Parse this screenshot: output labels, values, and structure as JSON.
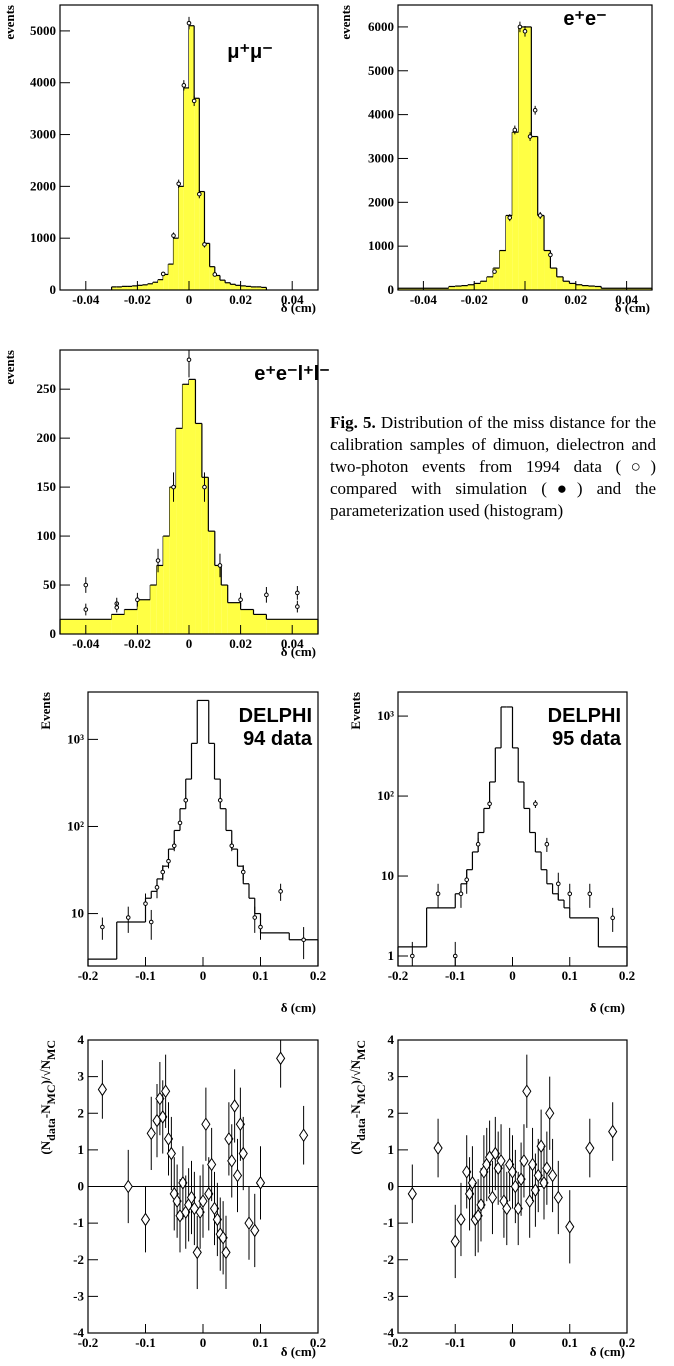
{
  "chart_data": [
    {
      "type": "histogram",
      "annotation": [
        "μ⁺μ⁻"
      ],
      "ylabel": [
        "events"
      ],
      "xlabel": "δ (cm)",
      "bins": [
        -0.03,
        -0.028,
        -0.026,
        -0.024,
        -0.022,
        -0.02,
        -0.018,
        -0.016,
        -0.014,
        -0.012,
        -0.01,
        -0.008,
        -0.006,
        -0.004,
        -0.002,
        0,
        0.002,
        0.004,
        0.006,
        0.008,
        0.01,
        0.012,
        0.014,
        0.016,
        0.018,
        0.02,
        0.022,
        0.024,
        0.026,
        0.028,
        0.03
      ],
      "values": [
        60,
        60,
        70,
        70,
        80,
        90,
        100,
        120,
        150,
        200,
        300,
        500,
        1000,
        2000,
        3900,
        5100,
        3700,
        1900,
        900,
        450,
        280,
        190,
        140,
        110,
        90,
        80,
        70,
        60,
        60,
        50
      ],
      "fill": "#ffff44",
      "points": {
        "x": [
          -0.01,
          -0.006,
          -0.004,
          -0.002,
          0,
          0.002,
          0.004,
          0.006,
          0.01
        ],
        "values": [
          310,
          1050,
          2050,
          3950,
          5150,
          3650,
          1850,
          880,
          300
        ],
        "errors": [
          40,
          60,
          80,
          100,
          120,
          100,
          80,
          60,
          40
        ]
      },
      "xlim": [
        -0.05,
        0.05
      ],
      "ylim": [
        0,
        5500
      ],
      "xticks": [
        -0.04,
        -0.02,
        0,
        0.02,
        0.04
      ],
      "yticks": [
        0,
        1000,
        2000,
        3000,
        4000,
        5000
      ]
    },
    {
      "type": "histogram",
      "annotation": [
        "e⁺e⁻"
      ],
      "ylabel": [
        "events"
      ],
      "xlabel": "δ (cm)",
      "bins": [
        -0.05,
        -0.03,
        -0.0275,
        -0.025,
        -0.0225,
        -0.02,
        -0.0175,
        -0.015,
        -0.0125,
        -0.01,
        -0.0075,
        -0.005,
        -0.0025,
        0,
        0.0025,
        0.005,
        0.0075,
        0.01,
        0.0125,
        0.015,
        0.0175,
        0.02,
        0.0225,
        0.025,
        0.0275,
        0.03,
        0.05
      ],
      "values": [
        40,
        80,
        90,
        100,
        120,
        150,
        200,
        300,
        500,
        900,
        1700,
        3600,
        6000,
        6000,
        3500,
        1700,
        900,
        500,
        300,
        200,
        150,
        120,
        100,
        90,
        80,
        40
      ],
      "fill": "#ffff44",
      "points": {
        "x": [
          -0.012,
          -0.006,
          -0.004,
          -0.002,
          0,
          0.002,
          0.004,
          0.006,
          0.01
        ],
        "values": [
          420,
          1650,
          3650,
          6000,
          5900,
          3500,
          4100,
          1700,
          800
        ],
        "errors": [
          40,
          80,
          100,
          120,
          120,
          100,
          100,
          80,
          60
        ]
      },
      "xlim": [
        -0.05,
        0.05
      ],
      "ylim": [
        0,
        6500
      ],
      "xticks": [
        -0.04,
        -0.02,
        0,
        0.02,
        0.04
      ],
      "yticks": [
        0,
        1000,
        2000,
        3000,
        4000,
        5000,
        6000
      ]
    },
    {
      "type": "histogram",
      "annotation": [
        "e⁺e⁻l⁺l⁻"
      ],
      "ylabel": [
        "events"
      ],
      "xlabel": "δ (cm)",
      "bins": [
        -0.05,
        -0.03,
        -0.025,
        -0.02,
        -0.015,
        -0.0125,
        -0.01,
        -0.0075,
        -0.005,
        -0.0025,
        0,
        0.0025,
        0.005,
        0.0075,
        0.01,
        0.0125,
        0.015,
        0.02,
        0.025,
        0.03,
        0.05
      ],
      "values": [
        15,
        20,
        25,
        35,
        50,
        70,
        100,
        150,
        210,
        255,
        260,
        215,
        160,
        105,
        70,
        50,
        32,
        25,
        20,
        15
      ],
      "fill": "#ffff44",
      "points": {
        "x": [
          -0.04,
          -0.04,
          -0.028,
          -0.028,
          -0.02,
          -0.012,
          -0.006,
          0,
          0.006,
          0.012,
          0.02,
          0.03,
          0.042,
          0.042
        ],
        "values": [
          50,
          25,
          31,
          27,
          35,
          75,
          150,
          280,
          150,
          70,
          35,
          40,
          42,
          28
        ],
        "errors": [
          8,
          6,
          6,
          5,
          7,
          12,
          15,
          18,
          15,
          12,
          7,
          8,
          7,
          6
        ]
      },
      "xlim": [
        -0.05,
        0.05
      ],
      "ylim": [
        0,
        290
      ],
      "xticks": [
        -0.04,
        -0.02,
        0,
        0.02,
        0.04
      ],
      "yticks": [
        0,
        50,
        100,
        150,
        200,
        250
      ]
    },
    {
      "type": "histogram",
      "log_scale": true,
      "annotation": [
        "DELPHI",
        "94 data"
      ],
      "ylabel": [
        "Events"
      ],
      "xlabel": "δ (cm)",
      "bins": [
        -0.2,
        -0.15,
        -0.1,
        -0.09,
        -0.08,
        -0.07,
        -0.06,
        -0.05,
        -0.04,
        -0.03,
        -0.02,
        -0.01,
        0,
        0.01,
        0.02,
        0.03,
        0.04,
        0.05,
        0.06,
        0.07,
        0.08,
        0.09,
        0.1,
        0.15,
        0.2
      ],
      "values": [
        3,
        8,
        15,
        18,
        25,
        35,
        55,
        90,
        160,
        350,
        900,
        2800,
        2800,
        900,
        350,
        160,
        90,
        55,
        35,
        22,
        15,
        10,
        6,
        5
      ],
      "points": {
        "x": [
          -0.175,
          -0.13,
          -0.1,
          -0.09,
          -0.08,
          -0.07,
          -0.06,
          -0.05,
          -0.04,
          -0.03,
          0.03,
          0.05,
          0.07,
          0.09,
          0.1,
          0.135,
          0.175
        ],
        "values": [
          7,
          9,
          13,
          8,
          20,
          30,
          40,
          60,
          110,
          200,
          200,
          60,
          30,
          9,
          7,
          18,
          5
        ],
        "errors": [
          2,
          3,
          4,
          3,
          5,
          6,
          7,
          8,
          11,
          15,
          15,
          8,
          6,
          3,
          2,
          4,
          2
        ]
      },
      "xlim": [
        -0.2,
        0.2
      ],
      "ylim": [
        2.5,
        3500
      ],
      "xticks": [
        -0.2,
        -0.1,
        0,
        0.1,
        0.2
      ],
      "yticks": [
        10,
        {
          "value": 100,
          "label": "10²"
        },
        {
          "value": 1000,
          "label": "10³"
        }
      ]
    },
    {
      "type": "histogram",
      "log_scale": true,
      "annotation": [
        "DELPHI",
        "95 data"
      ],
      "ylabel": [
        "Events"
      ],
      "xlabel": "δ (cm)",
      "bins": [
        -0.2,
        -0.15,
        -0.1,
        -0.09,
        -0.08,
        -0.07,
        -0.06,
        -0.05,
        -0.04,
        -0.03,
        -0.02,
        -0.01,
        0,
        0.01,
        0.02,
        0.03,
        0.04,
        0.05,
        0.06,
        0.07,
        0.08,
        0.09,
        0.1,
        0.15,
        0.2
      ],
      "values": [
        1.3,
        4,
        6,
        8,
        12,
        20,
        35,
        70,
        150,
        400,
        1300,
        1300,
        400,
        150,
        70,
        35,
        20,
        12,
        8,
        6,
        5,
        4,
        3,
        1.3
      ],
      "points": {
        "x": [
          -0.175,
          -0.13,
          -0.1,
          -0.09,
          -0.08,
          -0.06,
          -0.04,
          0.04,
          0.06,
          0.08,
          0.1,
          0.135,
          0.175
        ],
        "values": [
          1,
          6,
          1,
          6,
          9,
          25,
          80,
          80,
          25,
          8,
          6,
          6,
          3
        ],
        "errors": [
          0.5,
          2,
          0.5,
          2,
          3,
          5,
          9,
          9,
          5,
          3,
          2,
          2,
          1
        ]
      },
      "xlim": [
        -0.2,
        0.2
      ],
      "ylim": [
        0.75,
        2000
      ],
      "xticks": [
        -0.2,
        -0.1,
        0,
        0.1,
        0.2
      ],
      "yticks": [
        1,
        10,
        {
          "value": 100,
          "label": "10²"
        },
        {
          "value": 1000,
          "label": "10³"
        }
      ]
    },
    {
      "type": "scatter",
      "marker": "diamond",
      "ylabel": [
        "(N",
        "data",
        "-N",
        "MC",
        ")/√N",
        "MC"
      ],
      "xlabel": "δ (cm)",
      "reference_line": 0,
      "points": {
        "x": [
          -0.175,
          -0.13,
          -0.1,
          -0.09,
          -0.08,
          -0.075,
          -0.07,
          -0.065,
          -0.06,
          -0.055,
          -0.05,
          -0.045,
          -0.04,
          -0.035,
          -0.03,
          -0.025,
          -0.02,
          -0.015,
          -0.01,
          -0.005,
          0,
          0.005,
          0.01,
          0.015,
          0.02,
          0.025,
          0.03,
          0.035,
          0.04,
          0.045,
          0.05,
          0.055,
          0.06,
          0.065,
          0.07,
          0.08,
          0.09,
          0.1,
          0.135,
          0.175
        ],
        "values": [
          2.65,
          0,
          -0.9,
          1.45,
          1.8,
          2.4,
          1.9,
          2.6,
          1.3,
          0.9,
          -0.2,
          -0.4,
          -0.8,
          0.1,
          -0.7,
          -0.5,
          -0.3,
          -0.6,
          -1.8,
          -0.7,
          -0.4,
          1.7,
          -0.2,
          0.6,
          -0.6,
          -0.9,
          -1.3,
          -1.4,
          -1.8,
          1.3,
          0.7,
          2.2,
          0.3,
          1.7,
          0.9,
          -1,
          -1.2,
          0.1,
          3.5,
          1.4
        ],
        "errors": [
          0.8,
          1,
          0.9,
          1,
          1,
          1,
          1,
          1,
          1,
          1,
          1,
          1,
          1,
          1,
          1,
          1,
          1,
          1,
          1,
          1,
          1,
          1,
          1,
          1,
          1,
          1,
          1,
          1,
          1,
          1,
          1,
          1,
          1,
          1,
          1,
          1,
          1,
          1,
          0.8,
          0.8
        ]
      },
      "xlim": [
        -0.2,
        0.2
      ],
      "ylim": [
        -4,
        4
      ],
      "xticks": [
        -0.2,
        -0.1,
        0,
        0.1,
        0.2
      ],
      "yticks": [
        -4,
        -3,
        -2,
        -1,
        0,
        1,
        2,
        3,
        4
      ]
    },
    {
      "type": "scatter",
      "marker": "diamond",
      "ylabel": [
        "(N",
        "data",
        "-N",
        "MC",
        ")/√N",
        "MC"
      ],
      "xlabel": "δ (cm)",
      "reference_line": 0,
      "points": {
        "x": [
          -0.175,
          -0.13,
          -0.1,
          -0.09,
          -0.08,
          -0.075,
          -0.07,
          -0.065,
          -0.06,
          -0.055,
          -0.05,
          -0.045,
          -0.04,
          -0.035,
          -0.03,
          -0.025,
          -0.02,
          -0.015,
          -0.01,
          -0.005,
          0,
          0.005,
          0.01,
          0.015,
          0.02,
          0.025,
          0.03,
          0.035,
          0.04,
          0.045,
          0.05,
          0.055,
          0.06,
          0.065,
          0.07,
          0.08,
          0.1,
          0.135,
          0.175
        ],
        "values": [
          -0.2,
          1.05,
          -1.5,
          -0.9,
          0.4,
          -0.2,
          0.1,
          -0.9,
          -0.8,
          -0.5,
          0.4,
          0.6,
          0.8,
          -0.3,
          0.9,
          0.5,
          0.7,
          -0.4,
          -0.6,
          0.6,
          0.4,
          0,
          -0.6,
          0.2,
          0.7,
          2.6,
          -0.4,
          0.6,
          -0.1,
          0.3,
          1.1,
          0.1,
          0.5,
          2,
          0.3,
          -0.3,
          -1.1,
          1.05,
          1.5
        ],
        "errors": [
          0.8,
          0.8,
          1,
          1,
          1,
          1,
          1,
          1,
          1,
          1,
          1,
          1,
          1,
          1,
          1,
          1,
          1,
          1,
          1,
          1,
          1,
          1,
          1,
          1,
          1,
          1,
          1,
          1,
          1,
          1,
          1,
          1,
          1,
          1,
          1,
          1,
          1,
          0.8,
          0.8
        ]
      },
      "xlim": [
        -0.2,
        0.2
      ],
      "ylim": [
        -4,
        4
      ],
      "xticks": [
        -0.2,
        -0.1,
        0,
        0.1,
        0.2
      ],
      "yticks": [
        -4,
        -3,
        -2,
        -1,
        0,
        1,
        2,
        3,
        4
      ]
    }
  ],
  "caption": {
    "label": "Fig. 5.",
    "text": "Distribution of the miss distance for the calibration samples of dimuon, dielectron and two-photon events from 1994 data (○) compared with simulation (●) and the parameterization used (histogram)"
  }
}
